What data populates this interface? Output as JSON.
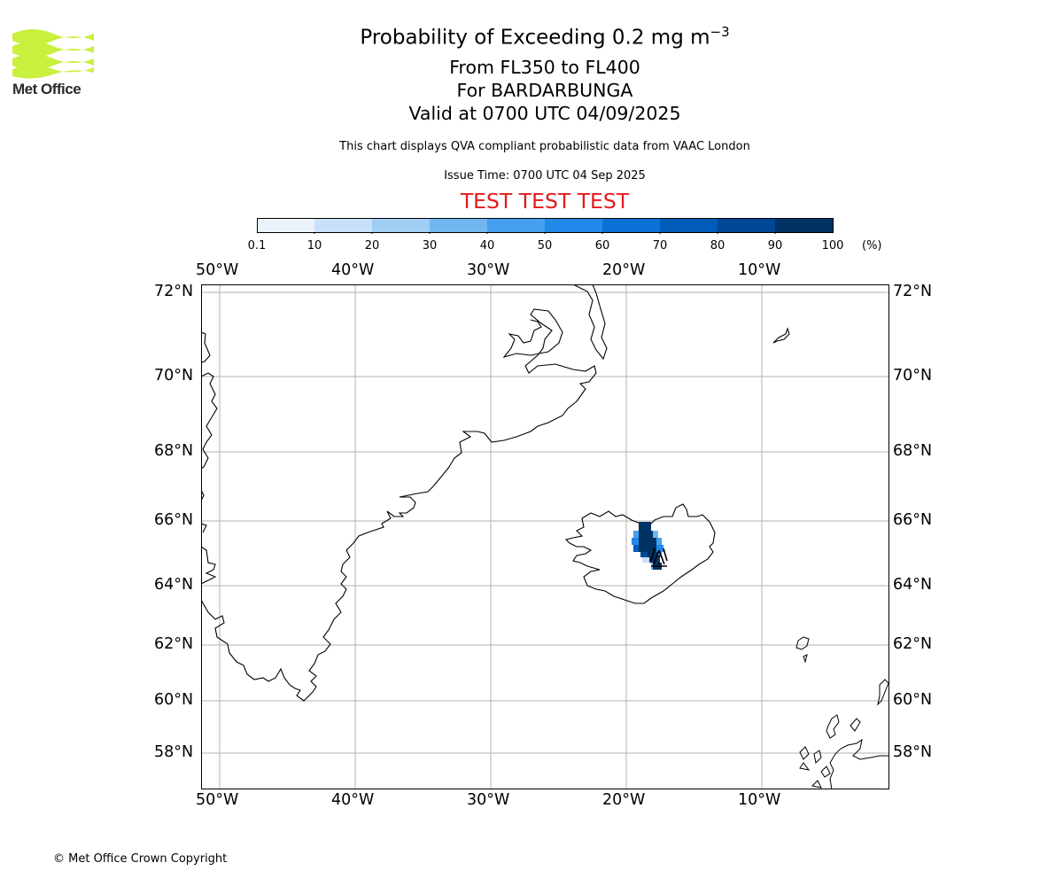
{
  "header": {
    "title_prefix": "Probability of Exceeding 0.2 mg m",
    "title_exponent": "−3",
    "levels": "From FL350 to FL400",
    "volcano": "For BARDARBUNGA",
    "valid": "Valid at 0700 UTC 04/09/2025",
    "disclaimer": "This chart displays QVA compliant probabilistic data from VAAC London",
    "issue_time": "Issue Time: 0700 UTC 04 Sep 2025",
    "test_banner": "TEST TEST TEST"
  },
  "logo": {
    "text": "Met Office",
    "color": "#c8f03c"
  },
  "footer": {
    "copyright": "© Met Office Crown Copyright"
  },
  "colorbar": {
    "unit": "(%)",
    "ticks": [
      "0.1",
      "10",
      "20",
      "30",
      "40",
      "50",
      "60",
      "70",
      "80",
      "90",
      "100"
    ],
    "colors": [
      "#eaf3fc",
      "#c7e1f8",
      "#9fcdf4",
      "#72b6f0",
      "#45a0ee",
      "#2189e8",
      "#0a72d6",
      "#005cb8",
      "#004897",
      "#003264"
    ]
  },
  "map": {
    "lon_labels": [
      "50°W",
      "40°W",
      "30°W",
      "20°W",
      "10°W"
    ],
    "lat_labels": [
      "72°N",
      "70°N",
      "68°N",
      "66°N",
      "64°N",
      "62°N",
      "60°N",
      "58°N"
    ],
    "grid_color": "#b0b0b0",
    "volcano_marker": {
      "name": "Bardarbunga",
      "lat": 64.64,
      "lon": -17.53
    }
  }
}
